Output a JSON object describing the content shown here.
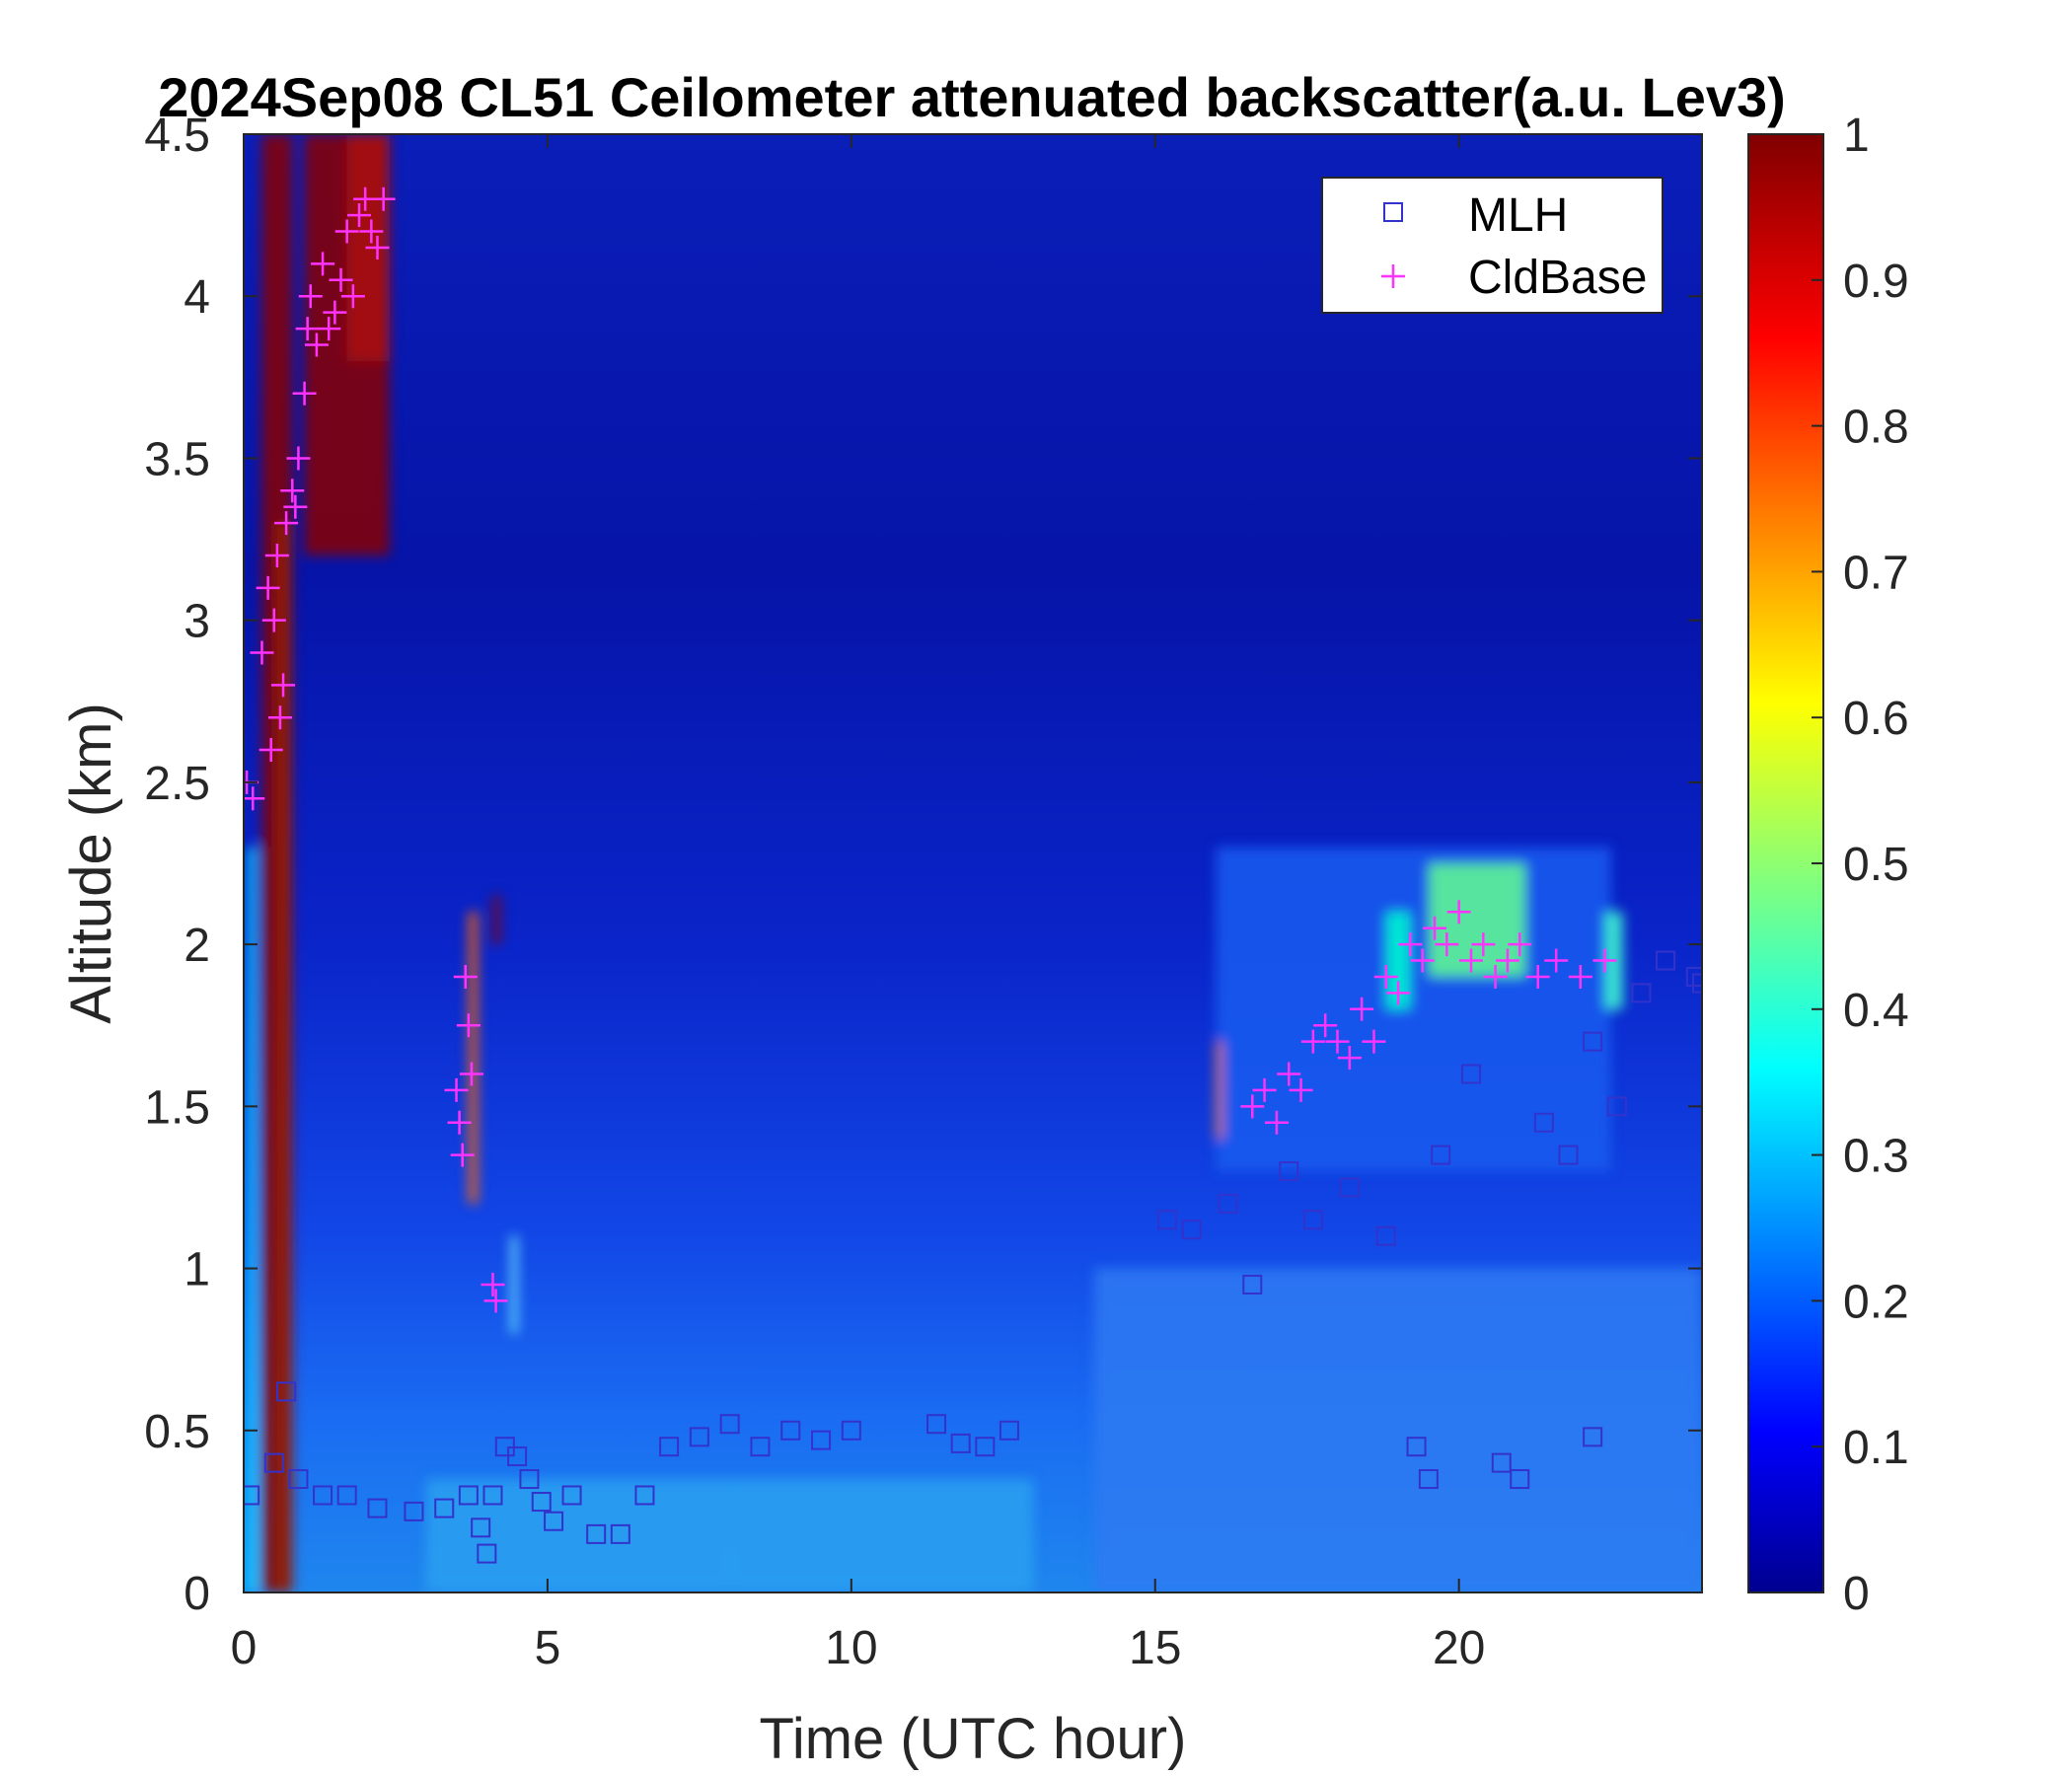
{
  "chart_data": {
    "type": "heatmap",
    "title": "2024Sep08 CL51 Ceilometer attenuated backscatter(a.u. Lev3)",
    "xlabel": "Time (UTC hour)",
    "ylabel": "Altitude (km)",
    "xlim": [
      0,
      24
    ],
    "ylim": [
      0,
      4.5
    ],
    "x_ticks": [
      "0",
      "5",
      "10",
      "15",
      "20"
    ],
    "y_ticks": [
      "0",
      "0.5",
      "1",
      "1.5",
      "2",
      "2.5",
      "3",
      "3.5",
      "4",
      "4.5"
    ],
    "colorbar": {
      "range": [
        0,
        1
      ],
      "colormap": "jet",
      "ticks": [
        "0",
        "0.1",
        "0.2",
        "0.3",
        "0.4",
        "0.5",
        "0.6",
        "0.7",
        "0.8",
        "0.9",
        "1"
      ]
    },
    "legend": {
      "placement": "top-right",
      "entries": [
        "MLH",
        "CldBase"
      ]
    },
    "series": [
      {
        "name": "MLH",
        "marker": "square",
        "color": "#3333cc",
        "points": [
          [
            0.1,
            0.3
          ],
          [
            0.5,
            0.4
          ],
          [
            0.7,
            0.62
          ],
          [
            0.9,
            0.35
          ],
          [
            1.3,
            0.3
          ],
          [
            1.7,
            0.3
          ],
          [
            2.2,
            0.26
          ],
          [
            2.8,
            0.25
          ],
          [
            3.3,
            0.26
          ],
          [
            3.7,
            0.3
          ],
          [
            3.9,
            0.2
          ],
          [
            4.0,
            0.12
          ],
          [
            4.1,
            0.3
          ],
          [
            4.3,
            0.45
          ],
          [
            4.5,
            0.42
          ],
          [
            4.7,
            0.35
          ],
          [
            4.9,
            0.28
          ],
          [
            5.1,
            0.22
          ],
          [
            5.4,
            0.3
          ],
          [
            5.8,
            0.18
          ],
          [
            6.2,
            0.18
          ],
          [
            6.6,
            0.3
          ],
          [
            7.0,
            0.45
          ],
          [
            7.5,
            0.48
          ],
          [
            8.0,
            0.52
          ],
          [
            8.5,
            0.45
          ],
          [
            9.0,
            0.5
          ],
          [
            9.5,
            0.47
          ],
          [
            10.0,
            0.5
          ],
          [
            11.4,
            0.52
          ],
          [
            11.8,
            0.46
          ],
          [
            12.2,
            0.45
          ],
          [
            12.6,
            0.5
          ],
          [
            15.2,
            1.15
          ],
          [
            15.6,
            1.12
          ],
          [
            16.2,
            1.2
          ],
          [
            16.6,
            0.95
          ],
          [
            17.2,
            1.3
          ],
          [
            17.6,
            1.15
          ],
          [
            18.2,
            1.25
          ],
          [
            18.8,
            1.1
          ],
          [
            19.3,
            0.45
          ],
          [
            19.5,
            0.35
          ],
          [
            19.7,
            1.35
          ],
          [
            20.2,
            1.6
          ],
          [
            20.7,
            0.4
          ],
          [
            21.0,
            0.35
          ],
          [
            21.4,
            1.45
          ],
          [
            21.8,
            1.35
          ],
          [
            22.2,
            1.7
          ],
          [
            22.2,
            0.48
          ],
          [
            22.6,
            1.5
          ],
          [
            23.0,
            1.85
          ],
          [
            23.4,
            1.95
          ],
          [
            23.9,
            1.9
          ],
          [
            24.0,
            1.88
          ]
        ]
      },
      {
        "name": "CldBase",
        "marker": "plus",
        "color": "#ff33ff",
        "points": [
          [
            0.05,
            2.5
          ],
          [
            0.15,
            2.45
          ],
          [
            0.3,
            2.9
          ],
          [
            0.4,
            3.1
          ],
          [
            0.45,
            2.6
          ],
          [
            0.5,
            3.0
          ],
          [
            0.55,
            3.2
          ],
          [
            0.6,
            2.7
          ],
          [
            0.65,
            2.8
          ],
          [
            0.7,
            3.3
          ],
          [
            0.8,
            3.4
          ],
          [
            0.85,
            3.35
          ],
          [
            0.9,
            3.5
          ],
          [
            1.0,
            3.7
          ],
          [
            1.05,
            3.9
          ],
          [
            1.1,
            4.0
          ],
          [
            1.2,
            3.85
          ],
          [
            1.3,
            4.1
          ],
          [
            1.4,
            3.9
          ],
          [
            1.5,
            3.95
          ],
          [
            1.6,
            4.05
          ],
          [
            1.7,
            4.2
          ],
          [
            1.8,
            4.0
          ],
          [
            1.9,
            4.25
          ],
          [
            2.0,
            4.3
          ],
          [
            2.1,
            4.2
          ],
          [
            2.2,
            4.15
          ],
          [
            2.3,
            4.3
          ],
          [
            3.5,
            1.55
          ],
          [
            3.55,
            1.45
          ],
          [
            3.6,
            1.35
          ],
          [
            3.65,
            1.9
          ],
          [
            3.7,
            1.75
          ],
          [
            3.75,
            1.6
          ],
          [
            4.1,
            0.95
          ],
          [
            4.15,
            0.9
          ],
          [
            16.6,
            1.5
          ],
          [
            16.8,
            1.55
          ],
          [
            17.0,
            1.45
          ],
          [
            17.2,
            1.6
          ],
          [
            17.4,
            1.55
          ],
          [
            17.6,
            1.7
          ],
          [
            17.8,
            1.75
          ],
          [
            18.0,
            1.7
          ],
          [
            18.2,
            1.65
          ],
          [
            18.4,
            1.8
          ],
          [
            18.6,
            1.7
          ],
          [
            18.8,
            1.9
          ],
          [
            19.0,
            1.85
          ],
          [
            19.2,
            2.0
          ],
          [
            19.4,
            1.95
          ],
          [
            19.6,
            2.05
          ],
          [
            19.8,
            2.0
          ],
          [
            20.0,
            2.1
          ],
          [
            20.2,
            1.95
          ],
          [
            20.4,
            2.0
          ],
          [
            20.6,
            1.9
          ],
          [
            20.8,
            1.95
          ],
          [
            21.0,
            2.0
          ],
          [
            21.3,
            1.9
          ],
          [
            21.6,
            1.95
          ],
          [
            22.0,
            1.9
          ],
          [
            22.4,
            1.95
          ]
        ]
      }
    ]
  }
}
